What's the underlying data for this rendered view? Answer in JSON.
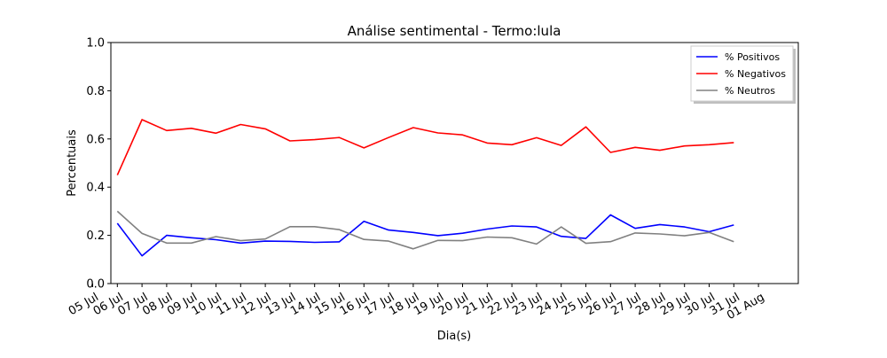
{
  "chart_data": {
    "type": "line",
    "title": "Análise sentimental - Termo:lula",
    "xlabel": "Dia(s)",
    "ylabel": "Percentuais",
    "ylim": [
      0,
      1
    ],
    "yticks": [
      "0.0",
      "0.2",
      "0.4",
      "0.6",
      "0.8",
      "1.0"
    ],
    "x_tick_labels": [
      "05 Jul",
      "06 Jul",
      "07 Jul",
      "08 Jul",
      "09 Jul",
      "10 Jul",
      "11 Jul",
      "12 Jul",
      "13 Jul",
      "14 Jul",
      "15 Jul",
      "16 Jul",
      "17 Jul",
      "18 Jul",
      "19 Jul",
      "20 Jul",
      "21 Jul",
      "22 Jul",
      "23 Jul",
      "24 Jul",
      "25 Jul",
      "26 Jul",
      "27 Jul",
      "28 Jul",
      "29 Jul",
      "30 Jul",
      "31 Jul",
      "01 Aug"
    ],
    "x": [
      "06 Jul",
      "07 Jul",
      "08 Jul",
      "09 Jul",
      "10 Jul",
      "11 Jul",
      "12 Jul",
      "13 Jul",
      "14 Jul",
      "15 Jul",
      "16 Jul",
      "17 Jul",
      "18 Jul",
      "19 Jul",
      "20 Jul",
      "21 Jul",
      "22 Jul",
      "23 Jul",
      "24 Jul",
      "25 Jul",
      "26 Jul",
      "27 Jul",
      "28 Jul",
      "29 Jul",
      "30 Jul",
      "31 Jul"
    ],
    "grid": false,
    "legend_position": "top-right",
    "series": [
      {
        "name": "% Positivos",
        "color": "#0000ff",
        "values": [
          0.25,
          0.115,
          0.2,
          0.19,
          0.182,
          0.168,
          0.176,
          0.175,
          0.171,
          0.173,
          0.258,
          0.222,
          0.212,
          0.199,
          0.209,
          0.226,
          0.239,
          0.235,
          0.196,
          0.187,
          0.285,
          0.229,
          0.245,
          0.235,
          0.215,
          0.243
        ]
      },
      {
        "name": "% Negativos",
        "color": "#ff0000",
        "values": [
          0.45,
          0.68,
          0.635,
          0.644,
          0.624,
          0.66,
          0.642,
          0.592,
          0.597,
          0.606,
          0.563,
          0.606,
          0.647,
          0.625,
          0.617,
          0.583,
          0.576,
          0.605,
          0.573,
          0.65,
          0.544,
          0.565,
          0.553,
          0.571,
          0.576,
          0.585
        ]
      },
      {
        "name": "% Neutros",
        "color": "#808080",
        "values": [
          0.3,
          0.208,
          0.168,
          0.168,
          0.195,
          0.178,
          0.185,
          0.236,
          0.236,
          0.224,
          0.183,
          0.176,
          0.144,
          0.179,
          0.178,
          0.193,
          0.19,
          0.164,
          0.235,
          0.167,
          0.174,
          0.21,
          0.206,
          0.198,
          0.212,
          0.174
        ]
      }
    ]
  }
}
